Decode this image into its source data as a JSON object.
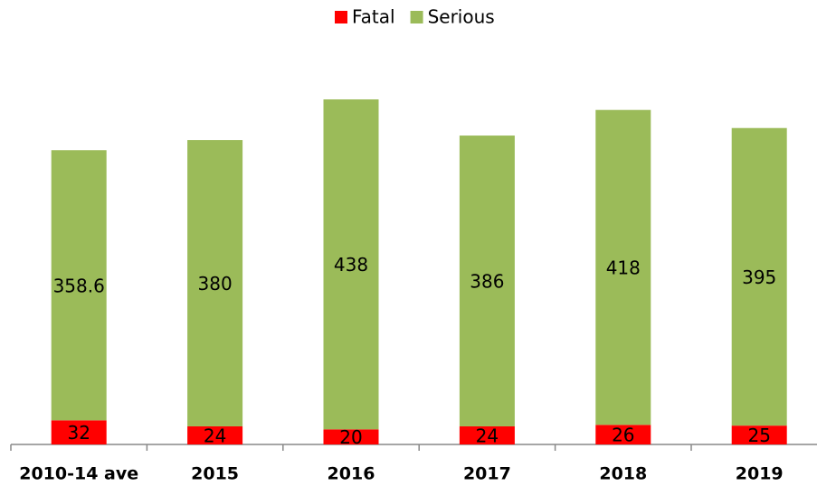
{
  "chart_data": {
    "type": "stacked_bar",
    "categories": [
      "2010-14 ave",
      "2015",
      "2016",
      "2017",
      "2018",
      "2019"
    ],
    "series": [
      {
        "name": "Fatal",
        "color": "#ff0000",
        "values": [
          32,
          24,
          20,
          24,
          26,
          25
        ]
      },
      {
        "name": "Serious",
        "color": "#9bbb59",
        "values": [
          358.6,
          380,
          438,
          386,
          418,
          395
        ]
      }
    ],
    "legend": "top"
  }
}
